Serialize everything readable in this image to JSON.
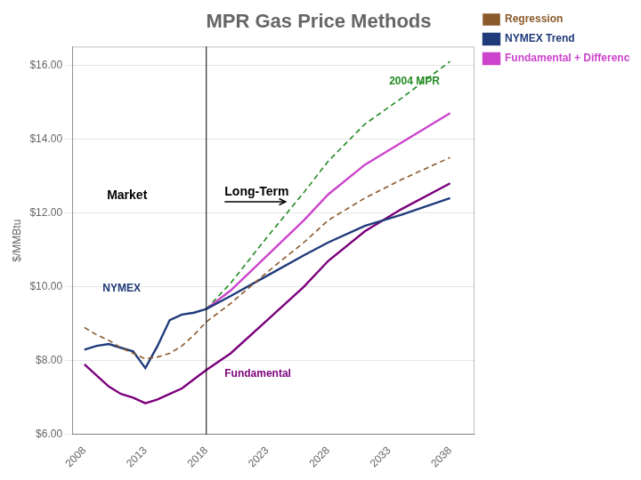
{
  "chart_data": {
    "type": "line",
    "title": "MPR Gas Price Methods",
    "ylabel": "$/MMBtu",
    "xlim": [
      2007,
      2040
    ],
    "xticks": [
      2008,
      2013,
      2018,
      2023,
      2028,
      2033,
      2038
    ],
    "ylim": [
      6.0,
      16.5
    ],
    "yticks": [
      {
        "value": 6.0,
        "label": "$6.00"
      },
      {
        "value": 8.0,
        "label": "$8.00"
      },
      {
        "value": 10.0,
        "label": "$10.00"
      },
      {
        "value": 12.0,
        "label": "$12.00"
      },
      {
        "value": 14.0,
        "label": "$14.00"
      },
      {
        "value": 16.0,
        "label": "$16.00"
      }
    ],
    "grid": "y",
    "legend": "right",
    "vline": 2018,
    "series": [
      {
        "name": "Regression",
        "color": "#8B5A2B",
        "line_style": "dashed",
        "x": [
          2008,
          2009,
          2010,
          2011,
          2012,
          2013,
          2014,
          2015,
          2016,
          2017,
          2018,
          2020,
          2023,
          2026,
          2028,
          2031,
          2034,
          2038
        ],
        "values": [
          8.9,
          8.7,
          8.55,
          8.35,
          8.2,
          8.05,
          8.1,
          8.2,
          8.4,
          8.7,
          9.05,
          9.55,
          10.4,
          11.2,
          11.8,
          12.4,
          12.9,
          13.5
        ]
      },
      {
        "color": "#1F3B7A",
        "line_style": "solid",
        "x": [
          2008,
          2009,
          2010,
          2011,
          2012,
          2013,
          2014,
          2015,
          2016,
          2017,
          2018
        ],
        "values": [
          8.3,
          8.4,
          8.45,
          8.35,
          8.25,
          7.8,
          8.4,
          9.1,
          9.25,
          9.3,
          9.4
        ]
      },
      {
        "name": "NYMEX Trend",
        "color": "#1F3B7A",
        "line_style": "solid",
        "x": [
          2018,
          2020,
          2023,
          2026,
          2028,
          2031,
          2034,
          2038
        ],
        "values": [
          9.4,
          9.75,
          10.3,
          10.85,
          11.2,
          11.65,
          11.95,
          12.4
        ]
      },
      {
        "name": "Fundamental + Difference",
        "color": "#CC44CC",
        "line_style": "solid",
        "x": [
          2018,
          2020,
          2023,
          2026,
          2028,
          2031,
          2034,
          2038
        ],
        "values": [
          9.4,
          9.9,
          10.85,
          11.8,
          12.5,
          13.3,
          13.9,
          14.7
        ]
      },
      {
        "color": "#228B22",
        "line_style": "dashed",
        "x": [
          2018,
          2020,
          2023,
          2026,
          2028,
          2031,
          2034,
          2038
        ],
        "values": [
          9.4,
          10.1,
          11.35,
          12.55,
          13.4,
          14.4,
          15.1,
          16.1
        ]
      },
      {
        "color": "#7B007B",
        "line_style": "solid",
        "x": [
          2008,
          2009,
          2010,
          2011,
          2012,
          2013,
          2014,
          2015,
          2016,
          2017,
          2018,
          2020,
          2023,
          2026,
          2028,
          2031,
          2034,
          2038
        ],
        "values": [
          7.9,
          7.6,
          7.3,
          7.1,
          7.0,
          6.85,
          6.95,
          7.1,
          7.25,
          7.5,
          7.75,
          8.2,
          9.1,
          10.0,
          10.7,
          11.5,
          12.1,
          12.8
        ]
      }
    ],
    "annotations": [
      {
        "text": "Market",
        "x": 2011.5,
        "y": 12.3,
        "align": "center"
      },
      {
        "text": "Long-Term",
        "x": 2019.5,
        "y": 12.3,
        "arrow_to": [
          2024.5,
          12.3
        ]
      },
      {
        "text": "NYMEX",
        "x": 2009.5,
        "y": 9.8,
        "color": "#1F3B7A"
      },
      {
        "text": "Fundamental",
        "x": 2019.5,
        "y": 7.5,
        "color": "#7B007B"
      },
      {
        "text": "2004 MPR",
        "x": 2033,
        "y": 15.4,
        "color": "#228B22"
      }
    ]
  }
}
